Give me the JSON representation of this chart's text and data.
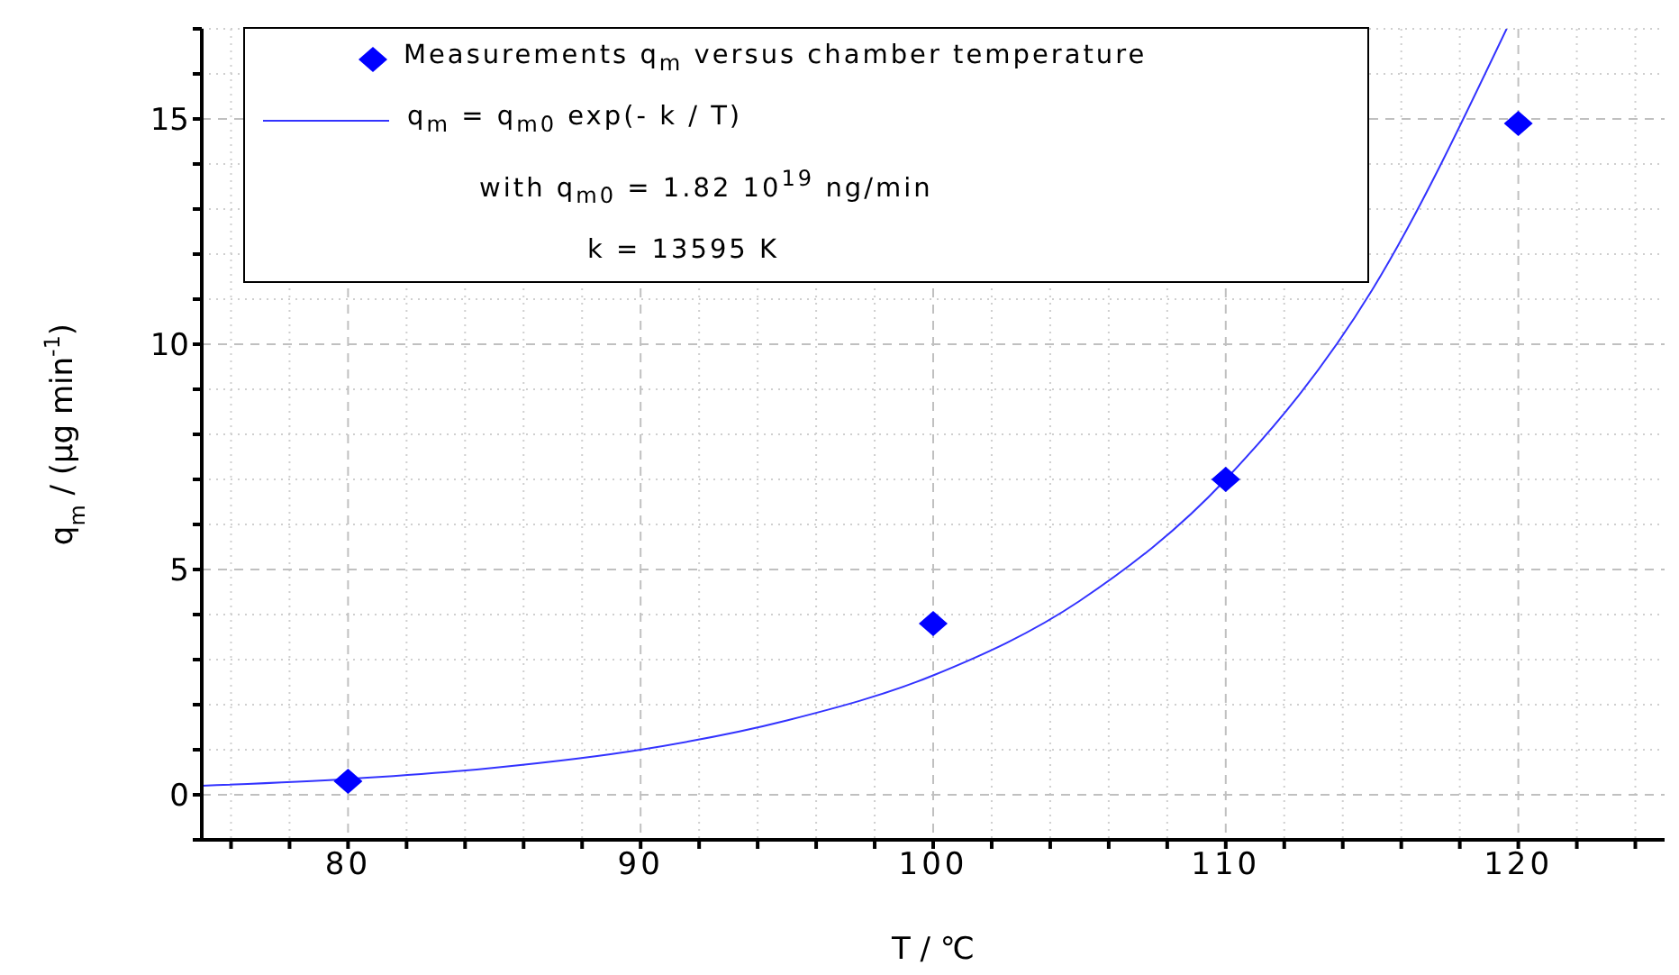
{
  "chart_data": {
    "type": "scatter",
    "xlabel": "T / ℃",
    "ylabel": "q$_{m}$ / (µg min$^{-1}$)",
    "xlim": [
      75,
      125
    ],
    "ylim": [
      -1,
      17
    ],
    "xticks": [
      {
        "value": 76,
        "label": null
      },
      {
        "value": 78,
        "label": null
      },
      80,
      {
        "value": 82,
        "label": null
      },
      {
        "value": 84,
        "label": null
      },
      {
        "value": 86,
        "label": null
      },
      {
        "value": 88,
        "label": null
      },
      90,
      {
        "value": 92,
        "label": null
      },
      {
        "value": 94,
        "label": null
      },
      {
        "value": 96,
        "label": null
      },
      {
        "value": 98,
        "label": null
      },
      100,
      {
        "value": 102,
        "label": null
      },
      {
        "value": 104,
        "label": null
      },
      {
        "value": 106,
        "label": null
      },
      {
        "value": 108,
        "label": null
      },
      110,
      {
        "value": 112,
        "label": null
      },
      {
        "value": 114,
        "label": null
      },
      {
        "value": 116,
        "label": null
      },
      {
        "value": 118,
        "label": null
      },
      120,
      {
        "value": 122,
        "label": null
      },
      {
        "value": 124,
        "label": null
      }
    ],
    "yticks": [
      {
        "value": -1,
        "label": null
      },
      0,
      {
        "value": 1,
        "label": null
      },
      {
        "value": 2,
        "label": null
      },
      {
        "value": 3,
        "label": null
      },
      {
        "value": 4,
        "label": null
      },
      5,
      {
        "value": 6,
        "label": null
      },
      {
        "value": 7,
        "label": null
      },
      {
        "value": 8,
        "label": null
      },
      {
        "value": 9,
        "label": null
      },
      10,
      {
        "value": 11,
        "label": null
      },
      {
        "value": 12,
        "label": null
      },
      {
        "value": 13,
        "label": null
      },
      {
        "value": 14,
        "label": null
      },
      15,
      {
        "value": 16,
        "label": null
      },
      {
        "value": 17,
        "label": null
      }
    ],
    "grid": true,
    "legend": "top left",
    "series": [
      {
        "name": "Measurements q$_{m}$ versus chamber temperature",
        "marker": "diamond",
        "color": "#0000ff",
        "x": [
          80,
          100,
          110,
          120
        ],
        "values": [
          0.3,
          3.8,
          7.0,
          14.9
        ]
      },
      {
        "name": "q$_{m}$ = q$_{m0}$ exp(- k / T)",
        "type": "line",
        "marker": "none",
        "color": "#3333ff",
        "x": [
          75,
          80,
          85,
          90,
          95,
          100,
          105,
          110,
          115,
          119.6
        ],
        "values": [
          0.2,
          0.35,
          0.6,
          1.0,
          1.65,
          2.65,
          4.3,
          7.0,
          11.2,
          17
        ]
      }
    ],
    "annotations": [
      "with q$_{m0}$ = 1.82 10$^{19}$ ng/min",
      "k = 13595 K"
    ]
  }
}
